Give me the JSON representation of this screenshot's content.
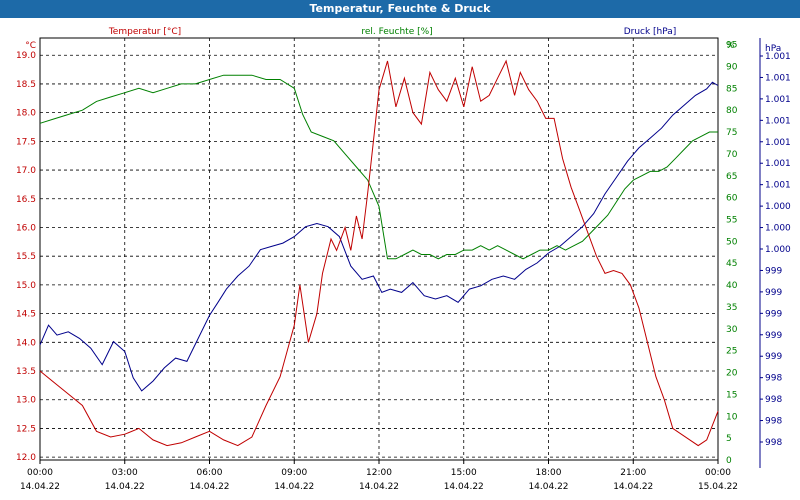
{
  "window": {
    "title": "Temperatur, Feuchte & Druck"
  },
  "chart_data": {
    "type": "line",
    "title": "Temperatur, Feuchte & Druck",
    "x_ticks": [
      {
        "time": "00:00",
        "date": "14.04.22"
      },
      {
        "time": "03:00",
        "date": "14.04.22"
      },
      {
        "time": "06:00",
        "date": "14.04.22"
      },
      {
        "time": "09:00",
        "date": "14.04.22"
      },
      {
        "time": "12:00",
        "date": "14.04.22"
      },
      {
        "time": "15:00",
        "date": "14.04.22"
      },
      {
        "time": "18:00",
        "date": "14.04.22"
      },
      {
        "time": "21:00",
        "date": "14.04.22"
      },
      {
        "time": "00:00",
        "date": "15.04.22"
      }
    ],
    "x_hours": [
      0,
      24
    ],
    "grid": true,
    "axes": {
      "temperature": {
        "label": "Temperatur [°C]",
        "unit": "°C",
        "side": "left",
        "color": "#c00000",
        "range": [
          11.95,
          19.3
        ],
        "ticks": [
          "12.0",
          "12.5",
          "13.0",
          "13.5",
          "14.0",
          "14.5",
          "15.0",
          "15.5",
          "16.0",
          "16.5",
          "17.0",
          "17.5",
          "18.0",
          "18.5",
          "19.0"
        ],
        "tick_values": [
          12.0,
          12.5,
          13.0,
          13.5,
          14.0,
          14.5,
          15.0,
          15.5,
          16.0,
          16.5,
          17.0,
          17.5,
          18.0,
          18.5,
          19.0
        ]
      },
      "humidity": {
        "label": "rel. Feuchte [%]",
        "unit": "%",
        "side": "right",
        "color": "#008000",
        "range": [
          0,
          96.5
        ],
        "ticks": [
          "0",
          "5",
          "10",
          "15",
          "20",
          "25",
          "30",
          "35",
          "40",
          "45",
          "50",
          "55",
          "60",
          "65",
          "70",
          "75",
          "80",
          "85",
          "90",
          "95"
        ],
        "tick_values": [
          0,
          5,
          10,
          15,
          20,
          25,
          30,
          35,
          40,
          45,
          50,
          55,
          60,
          65,
          70,
          75,
          80,
          85,
          90,
          95
        ]
      },
      "pressure": {
        "label": "Druck [hPa]",
        "unit": "hPa",
        "side": "right",
        "color": "#00008b",
        "ticks": [
          "998",
          "998",
          "998",
          "998",
          "999",
          "999",
          "999",
          "999",
          "999",
          "1.000",
          "1.000",
          "1.000",
          "1.001",
          "1.001",
          "1.001",
          "1.001",
          "1.001",
          "1.001",
          "1.001"
        ]
      }
    },
    "series": [
      {
        "name": "Temperatur [°C]",
        "axis": "temperature",
        "color": "#c00000",
        "x": [
          0,
          0.5,
          1,
          1.5,
          2,
          2.5,
          3,
          3.5,
          4,
          4.5,
          5,
          5.5,
          6,
          6.5,
          7,
          7.5,
          8,
          8.5,
          9,
          9.2,
          9.5,
          9.8,
          10,
          10.3,
          10.5,
          10.8,
          11,
          11.2,
          11.4,
          11.6,
          11.8,
          12,
          12.3,
          12.6,
          12.9,
          13.2,
          13.5,
          13.8,
          14.1,
          14.4,
          14.7,
          15,
          15.3,
          15.6,
          15.9,
          16.2,
          16.5,
          16.8,
          17,
          17.3,
          17.6,
          17.9,
          18.2,
          18.5,
          18.8,
          19.1,
          19.4,
          19.7,
          20,
          20.3,
          20.6,
          20.9,
          21.2,
          21.5,
          21.8,
          22.1,
          22.4,
          22.7,
          23,
          23.3,
          23.6,
          24
        ],
        "values": [
          13.5,
          13.3,
          13.1,
          12.9,
          12.45,
          12.35,
          12.4,
          12.5,
          12.3,
          12.2,
          12.25,
          12.35,
          12.45,
          12.3,
          12.2,
          12.35,
          12.9,
          13.4,
          14.3,
          15.0,
          14.0,
          14.5,
          15.2,
          15.8,
          15.6,
          16.0,
          15.6,
          16.2,
          15.8,
          16.6,
          17.5,
          18.4,
          18.9,
          18.1,
          18.6,
          18.0,
          17.8,
          18.7,
          18.4,
          18.2,
          18.6,
          18.1,
          18.8,
          18.2,
          18.3,
          18.6,
          18.9,
          18.3,
          18.7,
          18.4,
          18.2,
          17.9,
          17.9,
          17.2,
          16.7,
          16.3,
          15.9,
          15.5,
          15.2,
          15.25,
          15.2,
          15.0,
          14.6,
          14.0,
          13.4,
          13.0,
          12.5,
          12.4,
          12.3,
          12.2,
          12.3,
          12.8
        ]
      },
      {
        "name": "rel. Feuchte [%]",
        "axis": "humidity",
        "color": "#008000",
        "x": [
          0,
          0.5,
          1,
          1.5,
          2,
          2.5,
          3,
          3.5,
          4,
          4.5,
          5,
          5.5,
          6,
          6.5,
          7,
          7.5,
          8,
          8.5,
          9,
          9.3,
          9.6,
          10,
          10.4,
          10.8,
          11.2,
          11.6,
          12,
          12.3,
          12.6,
          12.9,
          13.2,
          13.5,
          13.8,
          14.1,
          14.4,
          14.7,
          15,
          15.3,
          15.6,
          15.9,
          16.2,
          16.5,
          16.8,
          17.1,
          17.4,
          17.7,
          18,
          18.3,
          18.6,
          18.9,
          19.2,
          19.5,
          19.8,
          20.1,
          20.4,
          20.7,
          21,
          21.3,
          21.6,
          21.9,
          22.2,
          22.5,
          22.8,
          23.1,
          23.4,
          23.7,
          24
        ],
        "values": [
          77,
          78,
          79,
          80,
          82,
          83,
          84,
          85,
          84,
          85,
          86,
          86,
          87,
          88,
          88,
          88,
          87,
          87,
          85,
          79,
          75,
          74,
          73,
          70,
          67,
          64,
          58,
          46,
          46,
          47,
          48,
          47,
          47,
          46,
          47,
          47,
          48,
          48,
          49,
          48,
          49,
          48,
          47,
          46,
          47,
          48,
          48,
          49,
          48,
          49,
          50,
          52,
          54,
          56,
          59,
          62,
          64,
          65,
          66,
          66,
          67,
          69,
          71,
          73,
          74,
          75,
          75
        ]
      },
      {
        "name": "Druck [hPa]",
        "axis": "pressure",
        "color": "#00008b",
        "x": [
          0,
          0.3,
          0.6,
          1,
          1.4,
          1.8,
          2.2,
          2.6,
          3,
          3.3,
          3.6,
          4,
          4.4,
          4.8,
          5.2,
          5.6,
          6,
          6.3,
          6.6,
          7,
          7.4,
          7.8,
          8.2,
          8.6,
          9,
          9.4,
          9.8,
          10.2,
          10.6,
          11,
          11.4,
          11.8,
          12.1,
          12.4,
          12.8,
          13.2,
          13.6,
          14,
          14.4,
          14.8,
          15.2,
          15.6,
          16,
          16.4,
          16.8,
          17.2,
          17.6,
          18,
          18.4,
          18.8,
          19.2,
          19.6,
          20,
          20.4,
          20.8,
          21.2,
          21.6,
          22,
          22.4,
          22.8,
          23.2,
          23.6,
          23.8,
          24
        ],
        "values_plot": [
          32,
          38,
          35,
          36,
          34,
          31,
          26,
          33,
          30,
          22,
          18,
          21,
          25,
          28,
          27,
          34,
          41,
          45,
          49,
          53,
          56,
          61,
          62,
          63,
          65,
          68,
          69,
          68,
          65,
          56,
          52,
          53,
          48,
          49,
          48,
          51,
          47,
          46,
          47,
          45,
          49,
          50,
          52,
          53,
          52,
          55,
          57,
          60,
          62,
          65,
          68,
          72,
          78,
          83,
          88,
          92,
          95,
          98,
          102,
          105,
          108,
          110,
          112,
          111
        ]
      }
    ]
  }
}
